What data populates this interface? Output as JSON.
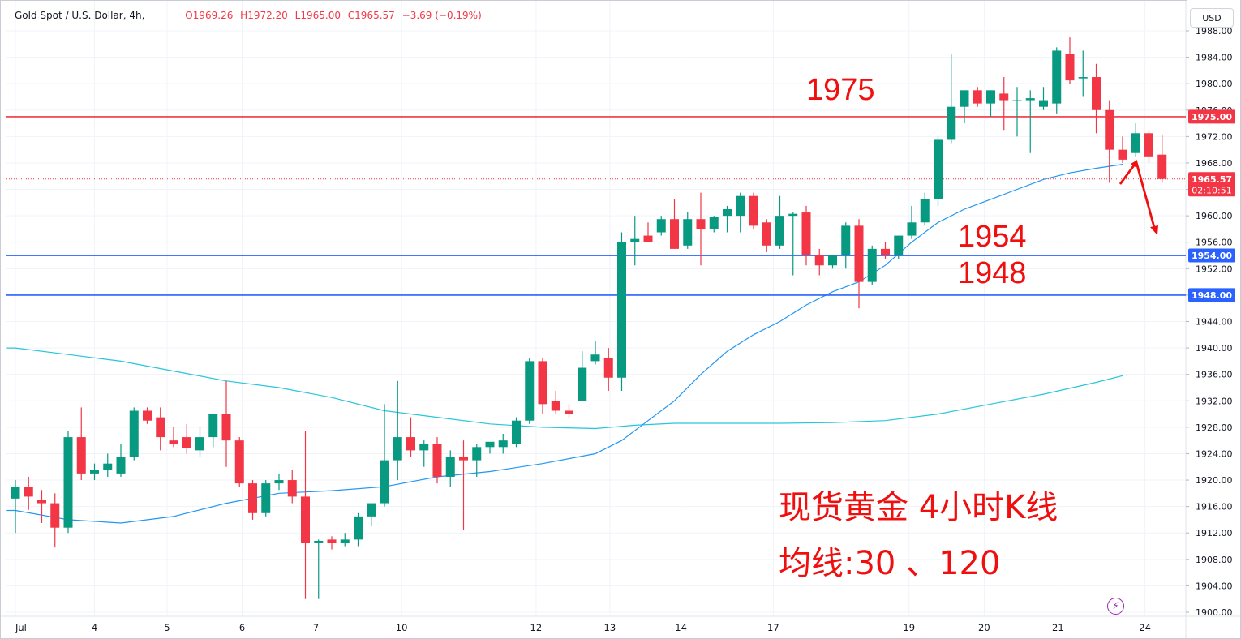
{
  "header": {
    "symbol": "Gold Spot / U.S. Dollar, 4h,",
    "open": "O1969.26",
    "high": "H1972.20",
    "low": "L1965.00",
    "close": "C1965.57",
    "change": "−3.69 (−0.19%)"
  },
  "currency_button": "USD",
  "colors": {
    "up": "#089981",
    "down": "#f23645",
    "ma30": "#2196f3",
    "ma120": "#26c6da",
    "resistance": "#f23645",
    "support": "#2962ff",
    "annotation": "#f00f0f"
  },
  "icons": {
    "bolt": "lightning-icon"
  },
  "annotations": {
    "r_label": "1975",
    "s1_label": "1954",
    "s2_label": "1948",
    "title": "现货黄金 4小时K线",
    "ma_label": "均线:30 、120"
  },
  "chart_data": {
    "type": "candlestick",
    "ylim": [
      1900,
      1988
    ],
    "y_ticks": [
      1900,
      1904,
      1908,
      1912,
      1916,
      1920,
      1924,
      1928,
      1932,
      1936,
      1940,
      1944,
      1948,
      1952,
      1956,
      1960,
      1964,
      1968,
      1972,
      1976,
      1980,
      1984,
      1988
    ],
    "x_tick_labels": [
      "Jul",
      "4",
      "5",
      "6",
      "7",
      "10",
      "12",
      "13",
      "14",
      "17",
      "19",
      "20",
      "21",
      "24"
    ],
    "x_tick_bar_index": [
      0,
      6,
      11.5,
      17.2,
      22.8,
      29.3,
      39.5,
      45.1,
      50.5,
      57.5,
      67.8,
      73.5,
      79.1,
      85.7
    ],
    "price_labels": [
      {
        "value": 1975.0,
        "text": "1975.00",
        "kind": "resistance"
      },
      {
        "value": 1965.57,
        "text": "1965.57",
        "sub": "02:10:51",
        "kind": "last"
      },
      {
        "value": 1954.0,
        "text": "1954.00",
        "kind": "support"
      },
      {
        "value": 1948.0,
        "text": "1948.00",
        "kind": "support"
      }
    ],
    "horizontal_lines": [
      {
        "value": 1975.0,
        "kind": "resistance"
      },
      {
        "value": 1954.0,
        "kind": "support"
      },
      {
        "value": 1948.0,
        "kind": "support"
      }
    ],
    "last_price": 1965.57,
    "candles": [
      {
        "o": 1917.2,
        "h": 1920.0,
        "l": 1912.0,
        "c": 1919.0
      },
      {
        "o": 1919.0,
        "h": 1920.5,
        "l": 1915.5,
        "c": 1917.5
      },
      {
        "o": 1917.0,
        "h": 1918.5,
        "l": 1913.5,
        "c": 1916.5
      },
      {
        "o": 1916.5,
        "h": 1918.0,
        "l": 1909.8,
        "c": 1912.8
      },
      {
        "o": 1912.8,
        "h": 1927.5,
        "l": 1912.0,
        "c": 1926.5
      },
      {
        "o": 1926.5,
        "h": 1931.0,
        "l": 1920.0,
        "c": 1921.0
      },
      {
        "o": 1921.0,
        "h": 1922.5,
        "l": 1920.0,
        "c": 1921.5
      },
      {
        "o": 1921.5,
        "h": 1924.0,
        "l": 1920.5,
        "c": 1922.5
      },
      {
        "o": 1921.0,
        "h": 1925.5,
        "l": 1920.5,
        "c": 1923.5
      },
      {
        "o": 1923.5,
        "h": 1931.0,
        "l": 1923.0,
        "c": 1930.5
      },
      {
        "o": 1930.5,
        "h": 1931.0,
        "l": 1928.5,
        "c": 1929.0
      },
      {
        "o": 1929.5,
        "h": 1931.0,
        "l": 1924.5,
        "c": 1926.5
      },
      {
        "o": 1926.0,
        "h": 1928.0,
        "l": 1925.0,
        "c": 1925.5
      },
      {
        "o": 1926.5,
        "h": 1928.5,
        "l": 1924.0,
        "c": 1924.8
      },
      {
        "o": 1924.5,
        "h": 1928.0,
        "l": 1923.5,
        "c": 1926.5
      },
      {
        "o": 1926.5,
        "h": 1930.0,
        "l": 1925.0,
        "c": 1930.0
      },
      {
        "o": 1930.0,
        "h": 1935.0,
        "l": 1922.0,
        "c": 1926.0
      },
      {
        "o": 1926.0,
        "h": 1926.5,
        "l": 1919.0,
        "c": 1919.5
      },
      {
        "o": 1919.5,
        "h": 1920.0,
        "l": 1914.0,
        "c": 1915.0
      },
      {
        "o": 1915.0,
        "h": 1920.0,
        "l": 1914.5,
        "c": 1919.5
      },
      {
        "o": 1919.5,
        "h": 1921.0,
        "l": 1918.5,
        "c": 1920.0
      },
      {
        "o": 1920.0,
        "h": 1921.5,
        "l": 1916.5,
        "c": 1917.5
      },
      {
        "o": 1917.5,
        "h": 1927.5,
        "l": 1902.0,
        "c": 1910.5
      },
      {
        "o": 1910.5,
        "h": 1911.0,
        "l": 1902.0,
        "c": 1910.8
      },
      {
        "o": 1911.0,
        "h": 1911.5,
        "l": 1909.5,
        "c": 1910.5
      },
      {
        "o": 1910.5,
        "h": 1912.0,
        "l": 1910.0,
        "c": 1911.0
      },
      {
        "o": 1911.0,
        "h": 1915.0,
        "l": 1910.0,
        "c": 1914.5
      },
      {
        "o": 1914.5,
        "h": 1916.5,
        "l": 1913.0,
        "c": 1916.5
      },
      {
        "o": 1916.5,
        "h": 1931.5,
        "l": 1916.0,
        "c": 1923.0
      },
      {
        "o": 1923.0,
        "h": 1935.0,
        "l": 1920.0,
        "c": 1926.5
      },
      {
        "o": 1926.5,
        "h": 1929.5,
        "l": 1923.5,
        "c": 1924.5
      },
      {
        "o": 1924.5,
        "h": 1926.0,
        "l": 1922.0,
        "c": 1925.5
      },
      {
        "o": 1925.5,
        "h": 1926.5,
        "l": 1919.5,
        "c": 1920.5
      },
      {
        "o": 1920.5,
        "h": 1924.5,
        "l": 1919.0,
        "c": 1923.5
      },
      {
        "o": 1923.5,
        "h": 1926.0,
        "l": 1912.5,
        "c": 1923.0
      },
      {
        "o": 1923.0,
        "h": 1925.5,
        "l": 1920.5,
        "c": 1925.0
      },
      {
        "o": 1925.0,
        "h": 1925.5,
        "l": 1924.0,
        "c": 1925.8
      },
      {
        "o": 1925.0,
        "h": 1927.0,
        "l": 1924.0,
        "c": 1926.0
      },
      {
        "o": 1925.5,
        "h": 1929.5,
        "l": 1925.0,
        "c": 1929.0
      },
      {
        "o": 1929.0,
        "h": 1938.5,
        "l": 1928.5,
        "c": 1938.0
      },
      {
        "o": 1938.0,
        "h": 1938.5,
        "l": 1930.0,
        "c": 1931.5
      },
      {
        "o": 1932.0,
        "h": 1933.5,
        "l": 1930.0,
        "c": 1930.5
      },
      {
        "o": 1930.5,
        "h": 1931.5,
        "l": 1929.5,
        "c": 1930.0
      },
      {
        "o": 1932.0,
        "h": 1939.5,
        "l": 1932.0,
        "c": 1937.0
      },
      {
        "o": 1938.0,
        "h": 1941.0,
        "l": 1937.5,
        "c": 1939.0
      },
      {
        "o": 1938.5,
        "h": 1940.0,
        "l": 1933.5,
        "c": 1935.5
      },
      {
        "o": 1935.5,
        "h": 1957.5,
        "l": 1933.5,
        "c": 1956.0
      },
      {
        "o": 1956.0,
        "h": 1960.0,
        "l": 1952.5,
        "c": 1956.5
      },
      {
        "o": 1957.0,
        "h": 1959.0,
        "l": 1956.0,
        "c": 1956.0
      },
      {
        "o": 1957.5,
        "h": 1960.0,
        "l": 1957.0,
        "c": 1959.5
      },
      {
        "o": 1959.5,
        "h": 1962.5,
        "l": 1955.0,
        "c": 1955.0
      },
      {
        "o": 1955.5,
        "h": 1960.5,
        "l": 1955.0,
        "c": 1959.5
      },
      {
        "o": 1959.5,
        "h": 1963.5,
        "l": 1952.5,
        "c": 1958.0
      },
      {
        "o": 1958.0,
        "h": 1960.0,
        "l": 1957.5,
        "c": 1959.8
      },
      {
        "o": 1960.0,
        "h": 1961.5,
        "l": 1957.5,
        "c": 1961.0
      },
      {
        "o": 1960.0,
        "h": 1963.5,
        "l": 1957.5,
        "c": 1963.0
      },
      {
        "o": 1963.0,
        "h": 1963.5,
        "l": 1958.0,
        "c": 1958.5
      },
      {
        "o": 1959.0,
        "h": 1959.5,
        "l": 1954.5,
        "c": 1955.5
      },
      {
        "o": 1955.5,
        "h": 1963.0,
        "l": 1955.0,
        "c": 1960.0
      },
      {
        "o": 1960.0,
        "h": 1960.5,
        "l": 1951.0,
        "c": 1960.3
      },
      {
        "o": 1960.5,
        "h": 1961.5,
        "l": 1952.5,
        "c": 1954.0
      },
      {
        "o": 1954.0,
        "h": 1955.0,
        "l": 1951.0,
        "c": 1952.5
      },
      {
        "o": 1952.5,
        "h": 1954.0,
        "l": 1952.0,
        "c": 1954.0
      },
      {
        "o": 1954.0,
        "h": 1959.0,
        "l": 1952.0,
        "c": 1958.5
      },
      {
        "o": 1958.5,
        "h": 1959.5,
        "l": 1946.0,
        "c": 1950.0
      },
      {
        "o": 1950.0,
        "h": 1955.5,
        "l": 1949.5,
        "c": 1955.0
      },
      {
        "o": 1955.0,
        "h": 1956.0,
        "l": 1953.5,
        "c": 1954.0
      },
      {
        "o": 1954.0,
        "h": 1957.0,
        "l": 1953.5,
        "c": 1957.0
      },
      {
        "o": 1957.0,
        "h": 1961.5,
        "l": 1956.5,
        "c": 1959.0
      },
      {
        "o": 1959.0,
        "h": 1963.5,
        "l": 1958.5,
        "c": 1962.5
      },
      {
        "o": 1962.5,
        "h": 1972.0,
        "l": 1961.5,
        "c": 1971.5
      },
      {
        "o": 1971.5,
        "h": 1984.5,
        "l": 1971.0,
        "c": 1976.5
      },
      {
        "o": 1976.5,
        "h": 1979.0,
        "l": 1974.0,
        "c": 1979.0
      },
      {
        "o": 1979.0,
        "h": 1979.5,
        "l": 1976.5,
        "c": 1977.0
      },
      {
        "o": 1977.0,
        "h": 1979.0,
        "l": 1975.0,
        "c": 1979.0
      },
      {
        "o": 1978.5,
        "h": 1981.0,
        "l": 1973.0,
        "c": 1977.5
      },
      {
        "o": 1977.5,
        "h": 1979.5,
        "l": 1972.0,
        "c": 1977.5
      },
      {
        "o": 1977.5,
        "h": 1979.0,
        "l": 1969.5,
        "c": 1977.8
      },
      {
        "o": 1976.5,
        "h": 1979.5,
        "l": 1976.0,
        "c": 1977.5
      },
      {
        "o": 1977.0,
        "h": 1985.5,
        "l": 1975.5,
        "c": 1985.0
      },
      {
        "o": 1984.5,
        "h": 1987.0,
        "l": 1980.0,
        "c": 1980.5
      },
      {
        "o": 1980.8,
        "h": 1985.0,
        "l": 1978.0,
        "c": 1981.0
      },
      {
        "o": 1981.0,
        "h": 1983.0,
        "l": 1972.5,
        "c": 1976.0
      },
      {
        "o": 1976.0,
        "h": 1977.5,
        "l": 1965.0,
        "c": 1970.0
      },
      {
        "o": 1970.0,
        "h": 1972.0,
        "l": 1968.0,
        "c": 1968.5
      },
      {
        "o": 1969.5,
        "h": 1974.0,
        "l": 1969.0,
        "c": 1972.5
      },
      {
        "o": 1972.5,
        "h": 1973.0,
        "l": 1968.0,
        "c": 1969.0
      },
      {
        "o": 1969.26,
        "h": 1972.2,
        "l": 1965.0,
        "c": 1965.57
      }
    ],
    "ma30": [
      [
        0,
        1915.4
      ],
      [
        4,
        1914.0
      ],
      [
        8,
        1913.5
      ],
      [
        12,
        1914.5
      ],
      [
        16,
        1916.5
      ],
      [
        20,
        1918.0
      ],
      [
        24,
        1918.4
      ],
      [
        28,
        1919.0
      ],
      [
        32,
        1920.5
      ],
      [
        36,
        1921.3
      ],
      [
        40,
        1922.5
      ],
      [
        44,
        1924.0
      ],
      [
        46,
        1926.0
      ],
      [
        48,
        1929.0
      ],
      [
        50,
        1932.0
      ],
      [
        52,
        1936.0
      ],
      [
        54,
        1939.5
      ],
      [
        56,
        1942.0
      ],
      [
        58,
        1944.0
      ],
      [
        60,
        1946.5
      ],
      [
        62,
        1948.5
      ],
      [
        64,
        1950.0
      ],
      [
        66,
        1952.5
      ],
      [
        68,
        1956.0
      ],
      [
        70,
        1959.0
      ],
      [
        72,
        1961.0
      ],
      [
        74,
        1962.5
      ],
      [
        76,
        1964.0
      ],
      [
        78,
        1965.5
      ],
      [
        80,
        1966.5
      ],
      [
        82,
        1967.2
      ],
      [
        84,
        1967.8
      ]
    ],
    "ma120": [
      [
        0,
        1940.0
      ],
      [
        4,
        1939.0
      ],
      [
        8,
        1938.0
      ],
      [
        12,
        1936.5
      ],
      [
        16,
        1935.0
      ],
      [
        20,
        1934.0
      ],
      [
        24,
        1932.5
      ],
      [
        28,
        1930.5
      ],
      [
        32,
        1929.5
      ],
      [
        36,
        1928.5
      ],
      [
        40,
        1928.0
      ],
      [
        44,
        1927.8
      ],
      [
        47,
        1928.3
      ],
      [
        50,
        1928.6
      ],
      [
        54,
        1928.6
      ],
      [
        58,
        1928.6
      ],
      [
        62,
        1928.7
      ],
      [
        66,
        1929.0
      ],
      [
        70,
        1930.0
      ],
      [
        74,
        1931.5
      ],
      [
        78,
        1933.0
      ],
      [
        82,
        1934.8
      ],
      [
        84,
        1935.8
      ]
    ]
  }
}
